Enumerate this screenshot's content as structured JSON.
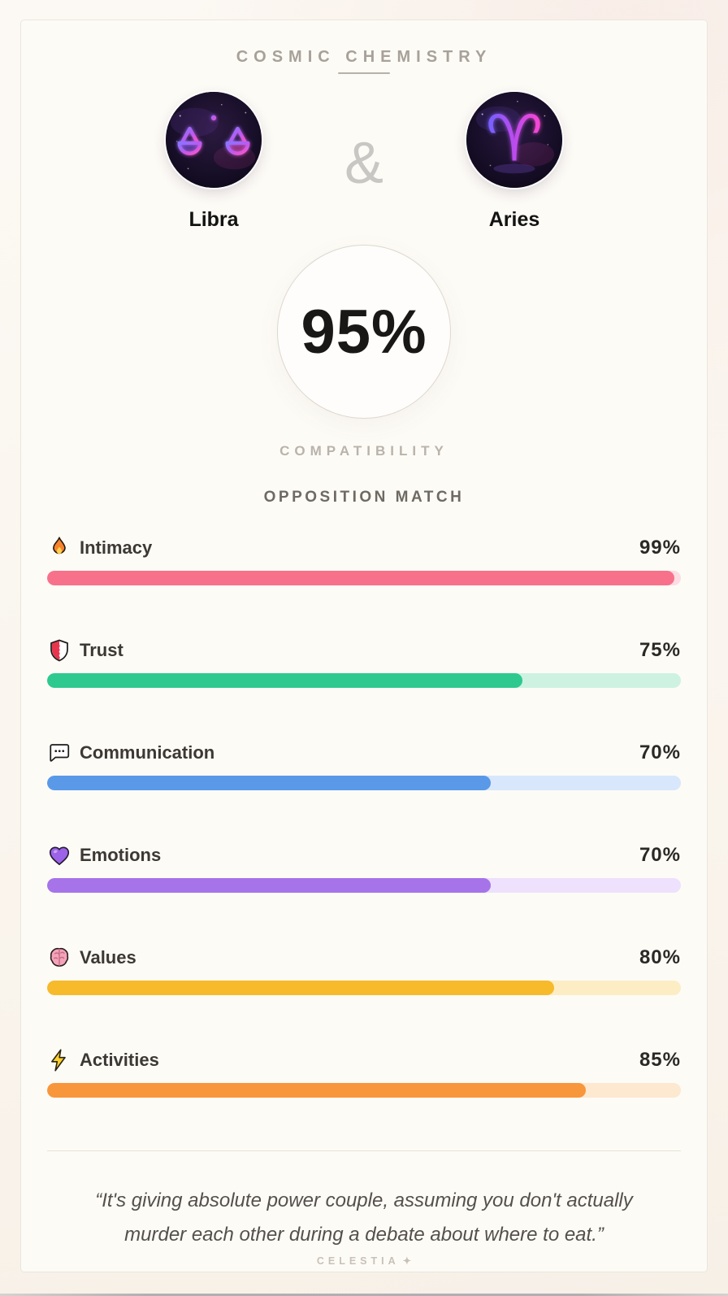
{
  "header": {
    "title": "COSMIC CHEMISTRY"
  },
  "pair": {
    "separator": "&",
    "left": {
      "name": "Libra",
      "symbol": "♎"
    },
    "right": {
      "name": "Aries",
      "symbol": "♈"
    }
  },
  "score": {
    "value": "95%",
    "label": "COMPATIBILITY"
  },
  "match_type": "OPPOSITION MATCH",
  "metrics": [
    {
      "icon": "fire-icon",
      "label": "Intimacy",
      "value": 99,
      "display": "99%",
      "color": "#f8718a",
      "track": "#fcdde4"
    },
    {
      "icon": "shield-icon",
      "label": "Trust",
      "value": 75,
      "display": "75%",
      "color": "#2ec98e",
      "track": "#cdf2e2"
    },
    {
      "icon": "speech-bubble-icon",
      "label": "Communication",
      "value": 70,
      "display": "70%",
      "color": "#5a99e8",
      "track": "#d8e7fb"
    },
    {
      "icon": "purple-heart-icon",
      "label": "Emotions",
      "value": 70,
      "display": "70%",
      "color": "#a673e9",
      "track": "#eee1fd"
    },
    {
      "icon": "brain-icon",
      "label": "Values",
      "value": 80,
      "display": "80%",
      "color": "#f6ba2a",
      "track": "#fcedc4"
    },
    {
      "icon": "lightning-icon",
      "label": "Activities",
      "value": 85,
      "display": "85%",
      "color": "#f8963b",
      "track": "#fde8d0"
    }
  ],
  "quote": {
    "text": "“It's giving absolute power couple, assuming you don't actually murder each other during a debate about where to eat.”"
  },
  "watermark": {
    "label": "CELESTIA",
    "sparkle": "✦"
  }
}
